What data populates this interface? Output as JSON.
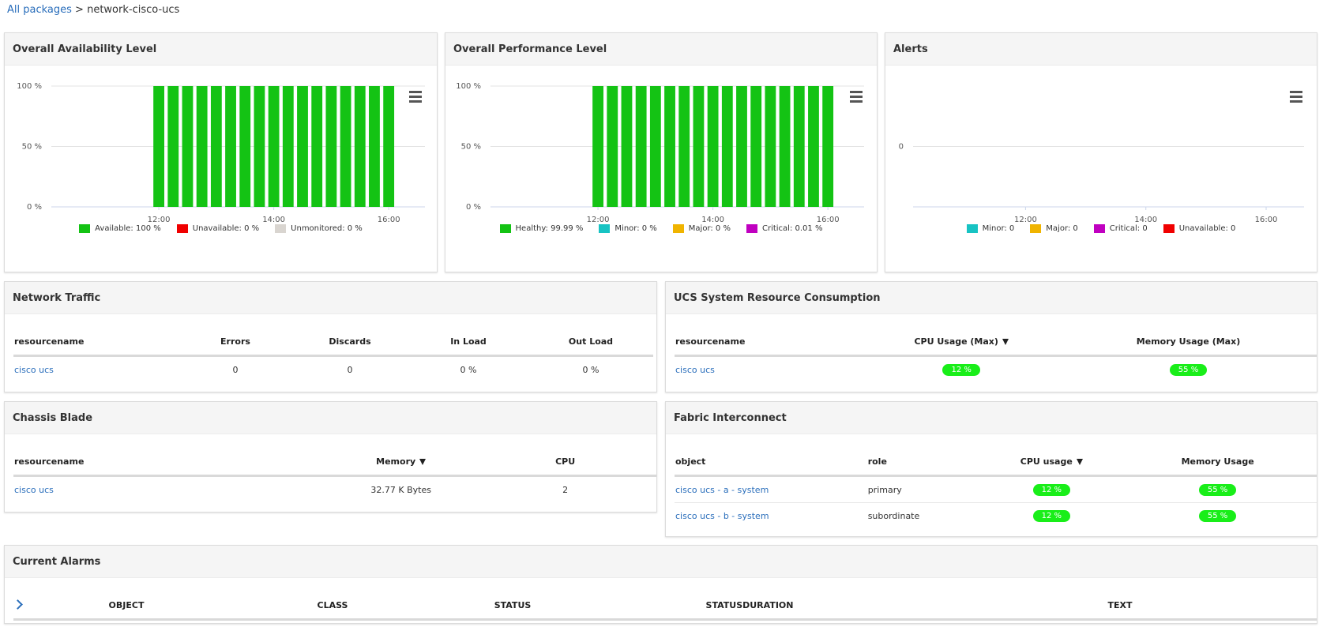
{
  "breadcrumb": {
    "link": "All packages",
    "separator": ">",
    "current": "network-cisco-ucs"
  },
  "chart_data": [
    {
      "type": "bar",
      "title": "Overall Availability Level",
      "x": [
        12,
        12.25,
        12.5,
        12.75,
        13,
        13.25,
        13.5,
        13.75,
        14,
        14.25,
        14.5,
        14.75,
        15,
        15.25,
        15.5,
        15.75,
        16
      ],
      "xlim": [
        10.13,
        16.63
      ],
      "xticks": [
        {
          "value": 12,
          "label": "12:00"
        },
        {
          "value": 14,
          "label": "14:00"
        },
        {
          "value": 16,
          "label": "16:00"
        }
      ],
      "ylim": [
        0,
        100
      ],
      "yticks": [
        {
          "value": 0,
          "label": "0 %"
        },
        {
          "value": 50,
          "label": "50 %"
        },
        {
          "value": 100,
          "label": "100 %"
        }
      ],
      "grid": true,
      "series": [
        {
          "name": "Available: 100 %",
          "color": "#14c314",
          "values": [
            100,
            100,
            100,
            100,
            100,
            100,
            100,
            100,
            100,
            100,
            100,
            100,
            100,
            100,
            100,
            100,
            100
          ]
        },
        {
          "name": "Unavailable: 0 %",
          "color": "#f00000",
          "values": [
            0,
            0,
            0,
            0,
            0,
            0,
            0,
            0,
            0,
            0,
            0,
            0,
            0,
            0,
            0,
            0,
            0
          ]
        },
        {
          "name": "Unmonitored: 0 %",
          "color": "#d9d5d0",
          "values": [
            0,
            0,
            0,
            0,
            0,
            0,
            0,
            0,
            0,
            0,
            0,
            0,
            0,
            0,
            0,
            0,
            0
          ]
        }
      ]
    },
    {
      "type": "bar",
      "title": "Overall Performance Level",
      "x": [
        12,
        12.25,
        12.5,
        12.75,
        13,
        13.25,
        13.5,
        13.75,
        14,
        14.25,
        14.5,
        14.75,
        15,
        15.25,
        15.5,
        15.75,
        16
      ],
      "xlim": [
        10.13,
        16.63
      ],
      "xticks": [
        {
          "value": 12,
          "label": "12:00"
        },
        {
          "value": 14,
          "label": "14:00"
        },
        {
          "value": 16,
          "label": "16:00"
        }
      ],
      "ylim": [
        0,
        100
      ],
      "yticks": [
        {
          "value": 0,
          "label": "0 %"
        },
        {
          "value": 50,
          "label": "50 %"
        },
        {
          "value": 100,
          "label": "100 %"
        }
      ],
      "grid": true,
      "series": [
        {
          "name": "Healthy: 99.99 %",
          "color": "#14c314",
          "values": [
            100,
            100,
            100,
            100,
            100,
            100,
            100,
            100,
            100,
            100,
            100,
            100,
            100,
            100,
            100,
            100,
            100
          ]
        },
        {
          "name": "Minor: 0 %",
          "color": "#17c3c3",
          "values": [
            0,
            0,
            0,
            0,
            0,
            0,
            0,
            0,
            0,
            0,
            0,
            0,
            0,
            0,
            0,
            0,
            0
          ]
        },
        {
          "name": "Major: 0 %",
          "color": "#f0b400",
          "values": [
            0,
            0,
            0,
            0,
            0,
            0,
            0,
            0,
            0,
            0,
            0,
            0,
            0,
            0,
            0,
            0,
            0
          ]
        },
        {
          "name": "Critical: 0.01 %",
          "color": "#c000c0",
          "values": [
            0,
            0,
            0,
            0,
            0,
            0,
            0,
            0,
            0,
            0,
            0,
            0,
            0,
            0,
            0,
            0,
            0
          ]
        }
      ]
    },
    {
      "type": "bar",
      "title": "Alerts",
      "x": [],
      "xlim": [
        10.13,
        16.63
      ],
      "xticks": [
        {
          "value": 12,
          "label": "12:00"
        },
        {
          "value": 14,
          "label": "14:00"
        },
        {
          "value": 16,
          "label": "16:00"
        }
      ],
      "ylim": [
        -1,
        1
      ],
      "yticks": [
        0
      ],
      "grid": true,
      "series": [
        {
          "name": "Minor: 0",
          "color": "#17c3c3",
          "values": []
        },
        {
          "name": "Major: 0",
          "color": "#f0b400",
          "values": []
        },
        {
          "name": "Critical: 0",
          "color": "#c000c0",
          "values": []
        },
        {
          "name": "Unavailable: 0",
          "color": "#f00000",
          "values": []
        }
      ]
    }
  ],
  "tables": [
    {
      "title": "Network Traffic",
      "columns": [
        "resourcename",
        "Errors",
        "Discards",
        "In Load",
        "Out Load"
      ],
      "rows": [
        [
          "cisco ucs",
          0,
          0,
          "0 %",
          "0 %"
        ]
      ]
    },
    {
      "title": "UCS System Resource Consumption",
      "columns": [
        "resourcename",
        "CPU Usage (Max)",
        "Memory Usage (Max)"
      ],
      "sorted_column": 1,
      "badge_columns": [
        1,
        2
      ],
      "rows": [
        [
          "cisco ucs",
          "12 %",
          "55 %"
        ]
      ]
    },
    {
      "title": "Chassis Blade",
      "columns": [
        "resourcename",
        "Memory",
        "CPU"
      ],
      "sorted_column": 1,
      "rows": [
        [
          "cisco ucs",
          "32.77 K Bytes",
          2
        ]
      ]
    },
    {
      "title": "Fabric Interconnect",
      "columns": [
        "object",
        "role",
        "CPU usage",
        "Memory Usage"
      ],
      "sorted_column": 2,
      "badge_columns": [
        2,
        3
      ],
      "rows": [
        [
          "cisco ucs - a - system",
          "primary",
          "12 %",
          "55 %"
        ],
        [
          "cisco ucs - b - system",
          "subordinate",
          "12 %",
          "55 %"
        ]
      ]
    },
    {
      "title": "Current Alarms",
      "columns": [
        "OBJECT",
        "CLASS",
        "STATUS",
        "STATUSDURATION",
        "TEXT"
      ],
      "rows": []
    }
  ]
}
